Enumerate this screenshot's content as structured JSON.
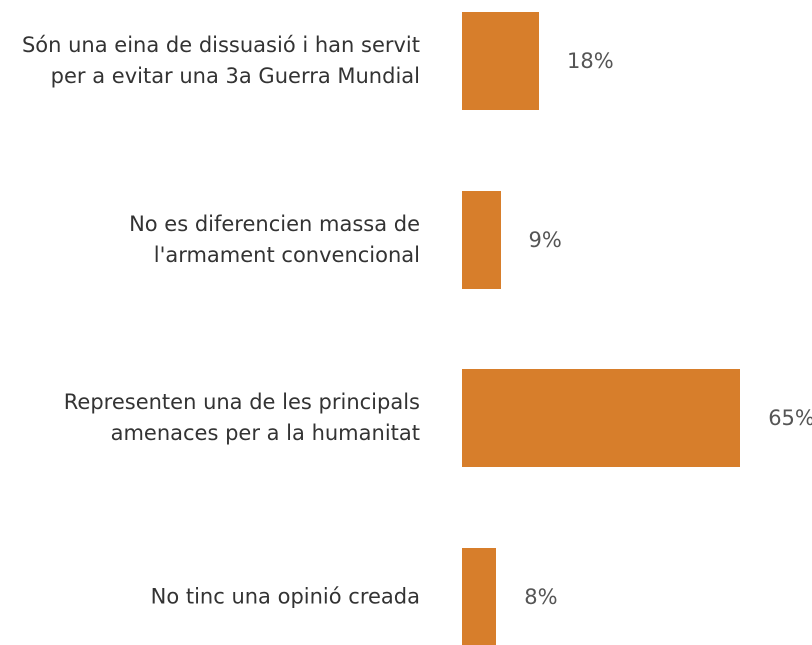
{
  "chart_data": {
    "type": "barh",
    "categories": [
      "Són una eina de dissuasió i han servit per a evitar una 3a Guerra Mundial",
      "No es diferencien massa de l'armament convencional",
      "Representen una de les principals amenaces per a la humanitat",
      "No tinc una opinió creada"
    ],
    "values": [
      18,
      9,
      65,
      8
    ],
    "value_labels": [
      "18%",
      "9%",
      "65%",
      "8%"
    ],
    "color": "#d77e2b",
    "xlim": [
      0,
      100
    ]
  }
}
